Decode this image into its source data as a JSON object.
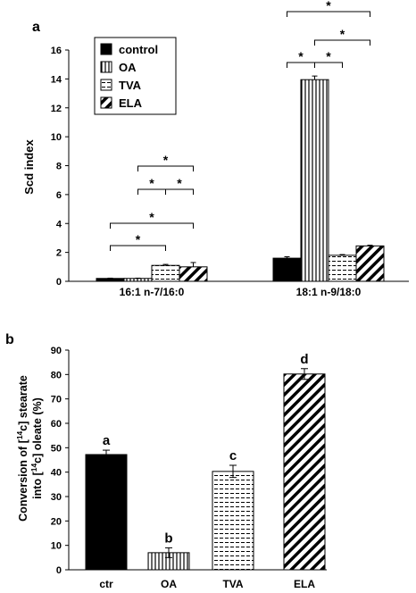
{
  "chart_data": [
    {
      "panel_label": "a",
      "type": "bar",
      "ylabel": "Scd index",
      "ylim": [
        0,
        16
      ],
      "yticks": [
        0,
        2,
        4,
        6,
        8,
        10,
        12,
        14,
        16
      ],
      "categories": [
        "16:1 n-7/16:0",
        "18:1 n-9/18:0"
      ],
      "series": [
        {
          "name": "control",
          "values": [
            0.2,
            1.6
          ],
          "errors": [
            0.02,
            0.1
          ],
          "fill": "solid"
        },
        {
          "name": "OA",
          "values": [
            0.2,
            13.95
          ],
          "errors": [
            0.02,
            0.25
          ],
          "fill": "vertical"
        },
        {
          "name": "TVA",
          "values": [
            1.1,
            1.8
          ],
          "errors": [
            0.07,
            0.05
          ],
          "fill": "horizontal"
        },
        {
          "name": "ELA",
          "values": [
            1.0,
            2.45
          ],
          "errors": [
            0.3,
            0.05
          ],
          "fill": "diagonal"
        }
      ],
      "legend": {
        "position": "top-left"
      },
      "significance": [
        {
          "category": 0,
          "from": 0,
          "to": 2,
          "label": "*"
        },
        {
          "category": 0,
          "from": 0,
          "to": 3,
          "label": "*"
        },
        {
          "category": 0,
          "from": 1,
          "to": 2,
          "label": "*"
        },
        {
          "category": 0,
          "from": 2,
          "to": 3,
          "label": "*"
        },
        {
          "category": 0,
          "from": 1,
          "to": 3,
          "label": "*"
        },
        {
          "category": 1,
          "from": 0,
          "to": 1,
          "label": "*"
        },
        {
          "category": 1,
          "from": 1,
          "to": 2,
          "label": "*"
        },
        {
          "category": 1,
          "from": 1,
          "to": 3,
          "label": "*"
        },
        {
          "category": 1,
          "from": 0,
          "to": 3,
          "label": "*"
        }
      ]
    },
    {
      "panel_label": "b",
      "type": "bar",
      "ylabel_lines": [
        "Conversion of [",
        "14",
        "c] stearate",
        "into [",
        "14",
        "c] oleate (%)"
      ],
      "ylim": [
        0,
        90
      ],
      "yticks": [
        0,
        10,
        20,
        30,
        40,
        50,
        60,
        70,
        80,
        90
      ],
      "categories": [
        "ctr",
        "OA",
        "TVA",
        "ELA"
      ],
      "values": [
        47.2,
        7.0,
        40.3,
        80.2
      ],
      "errors": [
        1.8,
        2.0,
        2.5,
        2.2
      ],
      "fills": [
        "solid",
        "vertical",
        "horizontal",
        "diagonal"
      ],
      "letters": [
        "a",
        "b",
        "c",
        "d"
      ]
    }
  ],
  "colors": {
    "ink": "#000000",
    "background": "#ffffff"
  }
}
